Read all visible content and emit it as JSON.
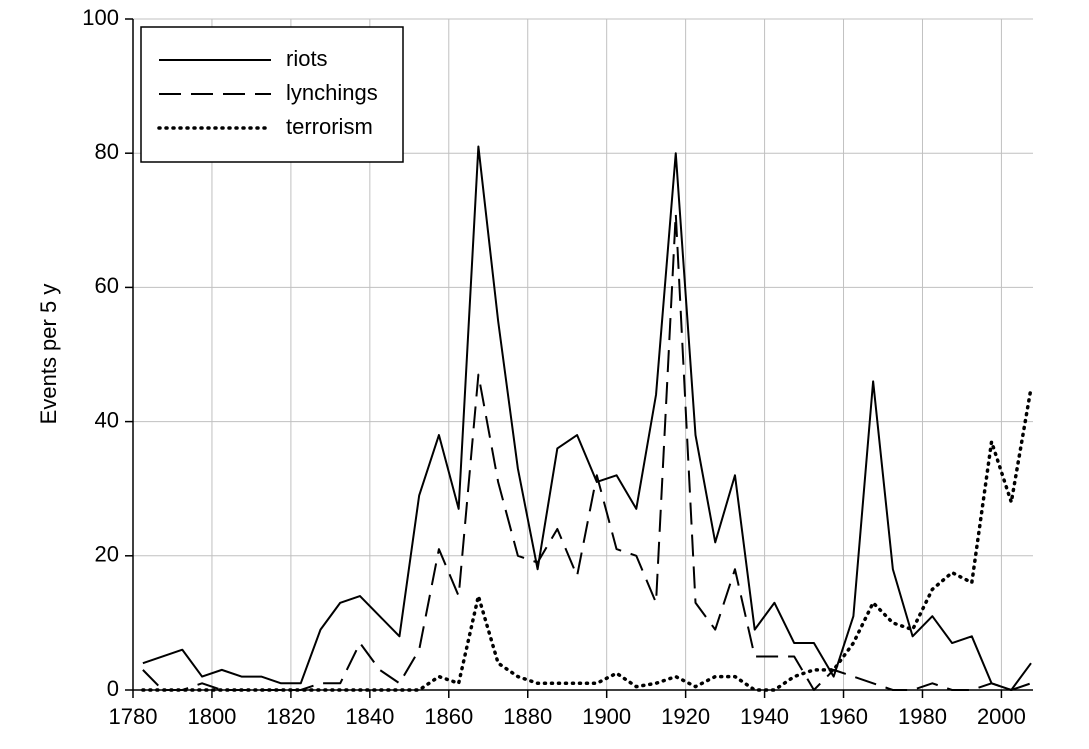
{
  "chart_data": {
    "type": "line",
    "ylabel": "Events per 5 y",
    "x": [
      1782.5,
      1787.5,
      1792.5,
      1797.5,
      1802.5,
      1807.5,
      1812.5,
      1817.5,
      1822.5,
      1827.5,
      1832.5,
      1837.5,
      1842.5,
      1847.5,
      1852.5,
      1857.5,
      1862.5,
      1867.5,
      1872.5,
      1877.5,
      1882.5,
      1887.5,
      1892.5,
      1897.5,
      1902.5,
      1907.5,
      1912.5,
      1917.5,
      1922.5,
      1927.5,
      1932.5,
      1937.5,
      1942.5,
      1947.5,
      1952.5,
      1957.5,
      1962.5,
      1967.5,
      1972.5,
      1977.5,
      1982.5,
      1987.5,
      1992.5,
      1997.5,
      2002.5,
      2007.5
    ],
    "series": [
      {
        "name": "riots",
        "color": "#000000",
        "dash": "solid",
        "values": [
          4,
          5,
          6,
          2,
          3,
          2,
          2,
          1,
          1,
          9,
          13,
          14,
          11,
          8,
          29,
          38,
          27,
          81,
          55,
          33,
          18,
          36,
          38,
          31,
          32,
          27,
          44,
          80,
          38,
          22,
          32,
          9,
          13,
          7,
          7,
          2,
          11,
          46,
          18,
          8,
          11,
          7,
          8,
          1,
          0,
          4
        ]
      },
      {
        "name": "lynchings",
        "color": "#000000",
        "dash": "dashed",
        "values": [
          3,
          0,
          0,
          1,
          0,
          0,
          0,
          0,
          0,
          1,
          1,
          7,
          3,
          1,
          6,
          21,
          14,
          47,
          31,
          20,
          19,
          24,
          17,
          32,
          21,
          20,
          13,
          71,
          13,
          9,
          18,
          5,
          5,
          5,
          0,
          3,
          2,
          1,
          0,
          0,
          1,
          0,
          0,
          1,
          0,
          1
        ]
      },
      {
        "name": "terrorism",
        "color": "#000000",
        "dash": "dotted",
        "values": [
          0,
          0,
          0,
          0,
          0,
          0,
          0,
          0,
          0,
          0,
          0,
          0,
          0,
          0,
          0,
          2,
          1,
          14,
          4,
          2,
          1,
          1,
          1,
          1,
          2.5,
          0.5,
          1,
          2,
          0.5,
          2,
          2,
          0,
          0,
          2,
          3,
          3,
          7,
          13,
          10,
          9,
          15,
          17.5,
          16,
          37,
          28,
          45
        ]
      }
    ],
    "xlim": [
      1780,
      2008
    ],
    "ylim": [
      0,
      100
    ],
    "xticks": [
      1780,
      1800,
      1820,
      1840,
      1860,
      1880,
      1900,
      1920,
      1940,
      1960,
      1980,
      2000
    ],
    "yticks": [
      0,
      20,
      40,
      60,
      80,
      100
    ],
    "grid": true,
    "legend": "upper-left"
  }
}
